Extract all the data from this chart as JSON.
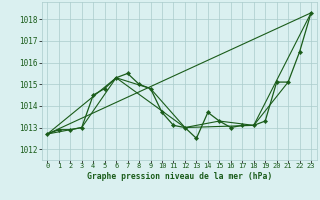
{
  "title": "Graphe pression niveau de la mer (hPa)",
  "bg_color": "#daf0f0",
  "grid_color": "#aacccc",
  "line_color": "#1a5c1a",
  "x_ticks": [
    0,
    1,
    2,
    3,
    4,
    5,
    6,
    7,
    8,
    9,
    10,
    11,
    12,
    13,
    14,
    15,
    16,
    17,
    18,
    19,
    20,
    21,
    22,
    23
  ],
  "y_ticks": [
    1012,
    1013,
    1014,
    1015,
    1016,
    1017,
    1018
  ],
  "ylim": [
    1011.5,
    1018.8
  ],
  "xlim": [
    -0.5,
    23.5
  ],
  "series": [
    {
      "x": [
        0,
        1,
        2,
        3,
        4,
        5,
        6,
        7,
        8,
        9,
        10,
        11,
        12,
        13,
        14,
        15,
        16,
        17,
        18,
        19,
        20,
        21,
        22,
        23
      ],
      "y": [
        1012.7,
        1012.9,
        1012.9,
        1013.0,
        1014.5,
        1014.8,
        1015.3,
        1015.5,
        1015.0,
        1014.8,
        1013.7,
        1013.1,
        1013.0,
        1012.5,
        1013.7,
        1013.3,
        1013.0,
        1013.1,
        1013.1,
        1013.3,
        1015.1,
        1015.1,
        1016.5,
        1018.3
      ],
      "marker": "D",
      "markersize": 2.2,
      "linewidth": 0.9
    },
    {
      "x": [
        0,
        3,
        6,
        9,
        12,
        15,
        18,
        21
      ],
      "y": [
        1012.7,
        1013.0,
        1015.3,
        1014.8,
        1013.0,
        1013.3,
        1013.1,
        1015.1
      ],
      "marker": null,
      "markersize": 0,
      "linewidth": 0.8
    },
    {
      "x": [
        0,
        23
      ],
      "y": [
        1012.7,
        1018.3
      ],
      "marker": null,
      "markersize": 0,
      "linewidth": 0.8
    },
    {
      "x": [
        0,
        6,
        12,
        18,
        23
      ],
      "y": [
        1012.7,
        1015.3,
        1013.0,
        1013.1,
        1018.3
      ],
      "marker": null,
      "markersize": 0,
      "linewidth": 0.8
    }
  ]
}
